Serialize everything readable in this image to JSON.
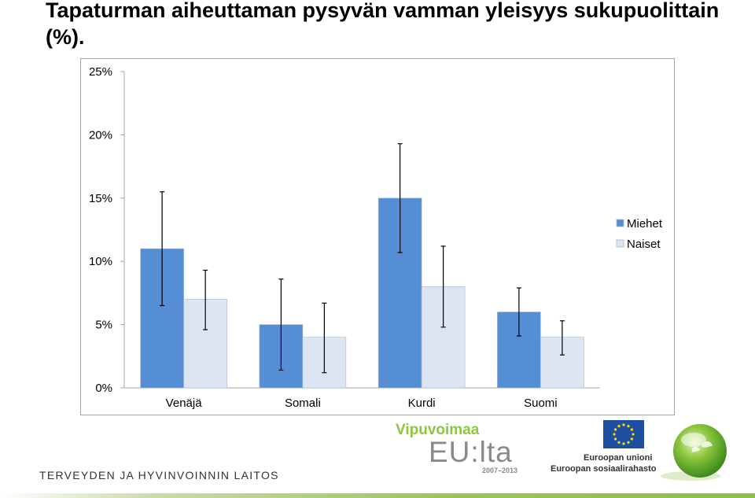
{
  "title": "Tapaturman aiheuttaman pysyvän vamman yleisyys sukupuolittain (%).",
  "chart_data": {
    "type": "bar",
    "categories": [
      "Venäjä",
      "Somali",
      "Kurdi",
      "Suomi"
    ],
    "series": [
      {
        "name": "Miehet",
        "values": [
          11,
          5,
          15,
          6
        ],
        "error_low": [
          6.5,
          1.4,
          10.7,
          4.1
        ],
        "error_high": [
          15.5,
          8.6,
          19.3,
          7.9
        ],
        "color": "#558ed5"
      },
      {
        "name": "Naiset",
        "values": [
          7,
          4,
          8,
          4
        ],
        "error_low": [
          4.6,
          1.2,
          4.8,
          2.6
        ],
        "error_high": [
          9.3,
          6.7,
          11.2,
          5.3
        ],
        "color": "#dce6f2"
      }
    ],
    "yticks": [
      "0%",
      "5%",
      "10%",
      "15%",
      "20%",
      "25%"
    ],
    "ylim": [
      0,
      25
    ],
    "grid": false,
    "legend_position": "right"
  },
  "footer": {
    "org": "TERVEYDEN JA HYVINVOINNIN LAITOS",
    "vip_top": "Vipuvoimaa",
    "vip_mid": "EU:lta",
    "vip_years": "2007–2013",
    "eu_line1": "Euroopan unioni",
    "eu_line2": "Euroopan sosiaalirahasto"
  },
  "colors": {
    "miehet": "#558ed5",
    "naiset": "#dce6f2",
    "brand_green": "#8dc63f",
    "eu_blue": "#1f4fa0",
    "eu_star": "#ffde00"
  },
  "icons": {
    "eu_flag": "eu-flag-icon",
    "globe": "green-globe-icon"
  }
}
